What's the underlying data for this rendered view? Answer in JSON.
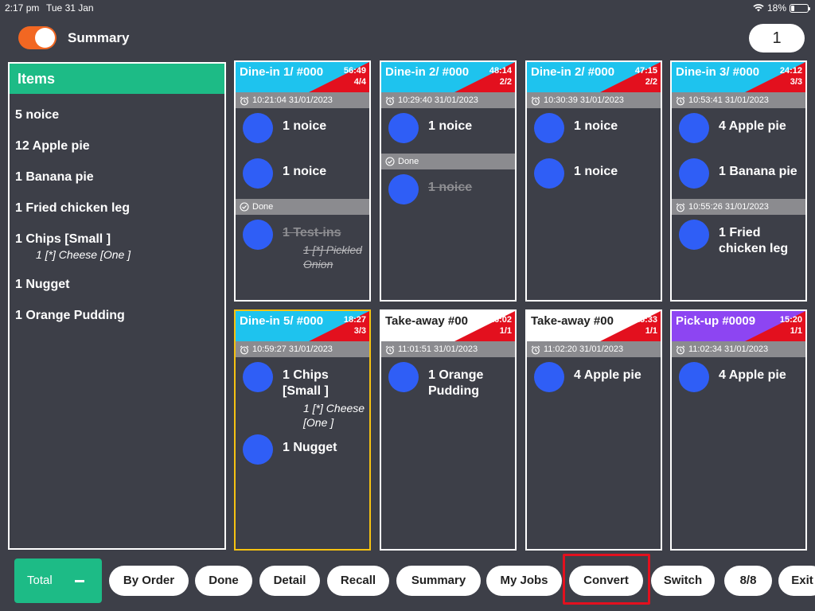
{
  "status": {
    "time": "2:17 pm",
    "date": "Tue 31 Jan",
    "battery": "18%"
  },
  "top": {
    "summary_label": "Summary",
    "count": "1"
  },
  "items": {
    "header": "Items",
    "rows": [
      {
        "text": "5 noice"
      },
      {
        "text": "12 Apple pie"
      },
      {
        "text": "1 Banana pie"
      },
      {
        "text": "1 Fried chicken leg"
      },
      {
        "text": "1 Chips  [Small ]",
        "mod": "1 [*] Cheese [One ]"
      },
      {
        "text": "1 Nugget"
      },
      {
        "text": "1 Orange Pudding"
      }
    ]
  },
  "orders": [
    {
      "title": "Dine-in 1/ #000",
      "timer": "56:49",
      "count": "4/4",
      "header_color": "#1ec3ee",
      "time": "10:21:04 31/01/2023",
      "lines": [
        "1 noice",
        "1 noice"
      ],
      "done_label": "Done",
      "done_lines": [
        {
          "text": "1 Test-ins",
          "mod": "1 [*] Pickled Onion"
        }
      ]
    },
    {
      "title": "Dine-in 2/ #000",
      "timer": "48:14",
      "count": "2/2",
      "header_color": "#1ec3ee",
      "time": "10:29:40 31/01/2023",
      "lines": [
        "1 noice"
      ],
      "done_label": "Done",
      "done_lines": [
        {
          "text": "1 noice"
        }
      ]
    },
    {
      "title": "Dine-in 2/ #000",
      "timer": "47:15",
      "count": "2/2",
      "header_color": "#1ec3ee",
      "time": "10:30:39 31/01/2023",
      "lines": [
        "1 noice",
        "1 noice"
      ]
    },
    {
      "title": "Dine-in 3/ #000",
      "timer": "24:12",
      "count": "3/3",
      "header_color": "#1ec3ee",
      "time": "10:53:41 31/01/2023",
      "lines": [
        "4 Apple pie",
        "1 Banana pie"
      ],
      "time2": "10:55:26 31/01/2023",
      "lines2": [
        "1 Fried chicken leg"
      ]
    },
    {
      "title": "Dine-in 5/ #000",
      "timer": "18:27",
      "count": "3/3",
      "header_color": "#1ec3ee",
      "time": "10:59:27 31/01/2023",
      "lines": [
        {
          "text": "1 Chips [Small ]",
          "mod": "1 [*] Cheese [One ]"
        },
        "1 Nugget"
      ]
    },
    {
      "title": "Take-away  #00",
      "timer": "16:02",
      "count": "1/1",
      "header_color": "#ffffff",
      "time": "11:01:51 31/01/2023",
      "lines": [
        "1 Orange Pudding"
      ]
    },
    {
      "title": "Take-away  #00",
      "timer": "15:33",
      "count": "1/1",
      "header_color": "#ffffff",
      "time": "11:02:20 31/01/2023",
      "lines": [
        "4 Apple pie"
      ]
    },
    {
      "title": "Pick-up  #0009",
      "timer": "15:20",
      "count": "1/1",
      "header_color": "#8d45f2",
      "time": "11:02:34 31/01/2023",
      "lines": [
        "4 Apple pie"
      ]
    }
  ],
  "toolbar": {
    "total": "Total",
    "buttons": [
      "By Order",
      "Done",
      "Detail",
      "Recall",
      "Summary",
      "My Jobs",
      "Convert",
      "Switch",
      "8/8",
      "Exit"
    ]
  },
  "colors": {
    "accent": "#1dbb86",
    "toggle": "#f26722",
    "timer_badge": "#e3101e",
    "item_dot": "#2f5ef6",
    "selected_border": "#f5c211"
  }
}
